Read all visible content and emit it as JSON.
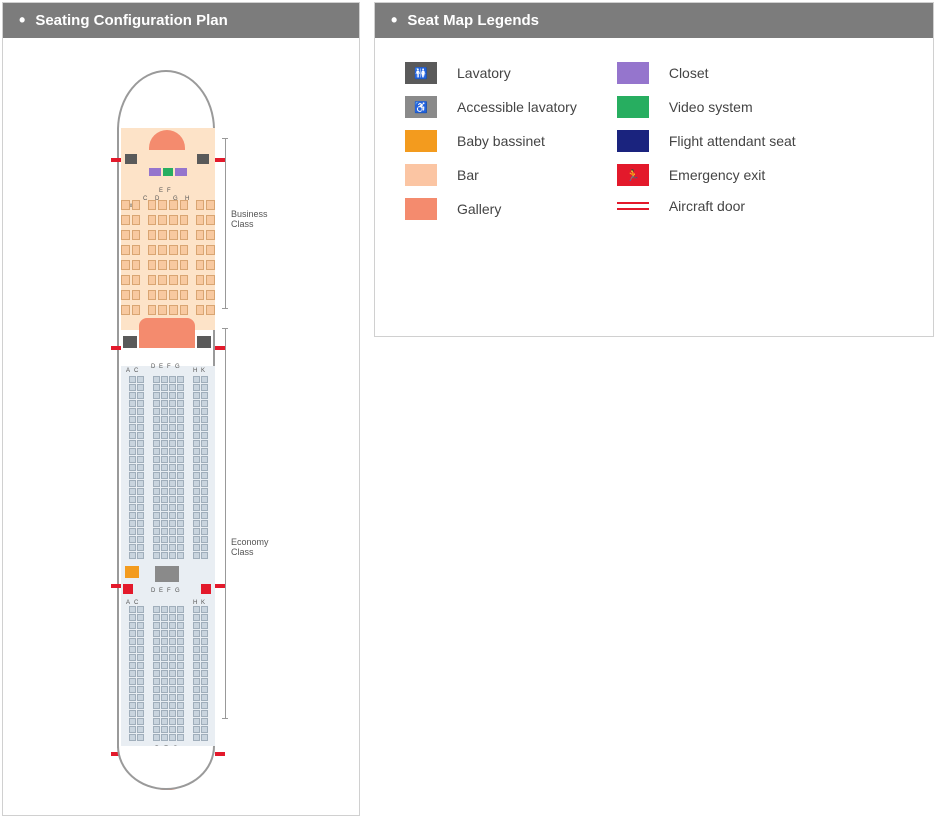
{
  "left_title": "Seating Configuration Plan",
  "right_title": "Seat Map Legends",
  "sections": {
    "business": "Business\nClass",
    "economy": "Economy\nClass"
  },
  "colors": {
    "header_bg": "#7c7c7c",
    "header_text": "#ffffff",
    "fuselage_border": "#9a9a9a",
    "biz_floor": "#fde3c8",
    "biz_seat": "#f8c9a0",
    "econ_floor": "#e9eef3",
    "econ_seat": "#c9d4de",
    "lavatory": "#5a5a5a",
    "accessible_lavatory": "#8a8a8a",
    "baby_bassinet": "#f39b1e",
    "bar": "#fbc5a3",
    "gallery": "#f48b6e",
    "closet": "#9575cd",
    "video_system": "#27ae60",
    "flight_attendant_seat": "#1a237e",
    "emergency_exit": "#e3192b",
    "aircraft_door": "#e3192b"
  },
  "business_columns": [
    "A",
    "C",
    "D",
    "E",
    "F",
    "G",
    "H",
    "K"
  ],
  "economy_columns": [
    "A",
    "C",
    "D",
    "E",
    "F",
    "G",
    "H",
    "K"
  ],
  "economy_rear_columns": [
    "D",
    "E",
    "G"
  ],
  "business_rows": 8,
  "economy_block1_rows": 23,
  "economy_block2_rows": 17,
  "legend_left": [
    {
      "key": "lavatory",
      "label": "Lavatory",
      "color": "#5a5a5a",
      "icon": "🚻"
    },
    {
      "key": "accessible_lavatory",
      "label": "Accessible lavatory",
      "color": "#8a8a8a",
      "icon": "♿"
    },
    {
      "key": "baby_bassinet",
      "label": "Baby bassinet",
      "color": "#f39b1e"
    },
    {
      "key": "bar",
      "label": "Bar",
      "color": "#fbc5a3"
    },
    {
      "key": "gallery",
      "label": "Gallery",
      "color": "#f48b6e"
    }
  ],
  "legend_right": [
    {
      "key": "closet",
      "label": "Closet",
      "color": "#9575cd"
    },
    {
      "key": "video_system",
      "label": "Video system",
      "color": "#27ae60"
    },
    {
      "key": "flight_attendant_seat",
      "label": "Flight attendant seat",
      "color": "#1a237e"
    },
    {
      "key": "emergency_exit",
      "label": "Emergency exit",
      "color": "#e3192b",
      "icon": "🏃"
    },
    {
      "key": "aircraft_door",
      "label": "Aircraft door",
      "type": "door"
    }
  ]
}
